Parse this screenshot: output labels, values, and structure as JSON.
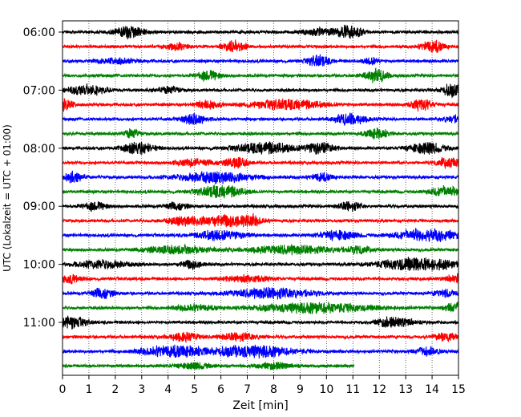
{
  "chart_data": {
    "type": "line",
    "title": "",
    "xlabel": "Zeit  [min]",
    "ylabel": "UTC (Lokalzeit = UTC + 01:00)",
    "xlim": [
      0,
      15
    ],
    "x_ticks": [
      0,
      1,
      2,
      3,
      4,
      5,
      6,
      7,
      8,
      9,
      10,
      11,
      12,
      13,
      14,
      15
    ],
    "x_tick_labels": [
      "0",
      "1",
      "2",
      "3",
      "4",
      "5",
      "6",
      "7",
      "8",
      "9",
      "10",
      "11",
      "12",
      "13",
      "14",
      "15"
    ],
    "y_tick_labels": [
      "06:00",
      "07:00",
      "08:00",
      "09:00",
      "10:00",
      "11:00"
    ],
    "y_tick_rows": [
      0,
      4,
      8,
      12,
      16,
      20
    ],
    "grid": "vertical dotted",
    "row_interval_min": 15,
    "colors": [
      "#000000",
      "#ff0000",
      "#0000ff",
      "#008000"
    ],
    "rows": [
      {
        "start": "06:00",
        "color": "#000000",
        "x_end": 15,
        "bursts": [
          [
            2.5,
            0.9,
            0.4
          ],
          [
            9.8,
            0.5,
            0.5
          ],
          [
            10.9,
            1.0,
            0.3
          ]
        ]
      },
      {
        "start": "06:15",
        "color": "#ff0000",
        "x_end": 15,
        "bursts": [
          [
            4.3,
            0.5,
            0.3
          ],
          [
            6.5,
            0.8,
            0.3
          ],
          [
            14.0,
            1.0,
            0.3
          ]
        ]
      },
      {
        "start": "06:30",
        "color": "#0000ff",
        "x_end": 15,
        "bursts": [
          [
            2.0,
            0.4,
            0.5
          ],
          [
            9.7,
            0.8,
            0.3
          ],
          [
            11.7,
            0.6,
            0.2
          ]
        ]
      },
      {
        "start": "06:45",
        "color": "#008000",
        "x_end": 15,
        "bursts": [
          [
            5.5,
            0.7,
            0.3
          ],
          [
            11.9,
            0.9,
            0.3
          ]
        ]
      },
      {
        "start": "07:00",
        "color": "#000000",
        "x_end": 15,
        "bursts": [
          [
            0.9,
            0.8,
            0.5
          ],
          [
            4.0,
            0.5,
            0.3
          ],
          [
            14.8,
            0.9,
            0.3
          ]
        ]
      },
      {
        "start": "07:15",
        "color": "#ff0000",
        "x_end": 15,
        "bursts": [
          [
            0.1,
            1.0,
            0.2
          ],
          [
            5.5,
            0.6,
            0.3
          ],
          [
            8.5,
            0.7,
            1.0
          ],
          [
            13.6,
            0.8,
            0.3
          ]
        ]
      },
      {
        "start": "07:30",
        "color": "#0000ff",
        "x_end": 15,
        "bursts": [
          [
            5.0,
            0.8,
            0.3
          ],
          [
            10.9,
            0.8,
            0.4
          ],
          [
            14.8,
            0.5,
            0.3
          ]
        ]
      },
      {
        "start": "07:45",
        "color": "#008000",
        "x_end": 15,
        "bursts": [
          [
            2.6,
            0.7,
            0.2
          ],
          [
            11.9,
            0.8,
            0.3
          ]
        ]
      },
      {
        "start": "08:00",
        "color": "#000000",
        "x_end": 15,
        "bursts": [
          [
            2.9,
            0.9,
            0.4
          ],
          [
            7.7,
            0.8,
            0.8
          ],
          [
            9.7,
            0.8,
            0.4
          ],
          [
            13.8,
            0.8,
            0.5
          ]
        ]
      },
      {
        "start": "08:15",
        "color": "#ff0000",
        "x_end": 15,
        "bursts": [
          [
            5.0,
            0.5,
            0.5
          ],
          [
            6.6,
            0.8,
            0.3
          ],
          [
            14.6,
            0.8,
            0.3
          ]
        ]
      },
      {
        "start": "08:30",
        "color": "#0000ff",
        "x_end": 15,
        "bursts": [
          [
            0.4,
            0.7,
            0.3
          ],
          [
            5.8,
            0.8,
            1.0
          ],
          [
            9.8,
            0.6,
            0.3
          ]
        ]
      },
      {
        "start": "08:45",
        "color": "#008000",
        "x_end": 15,
        "bursts": [
          [
            6.0,
            0.9,
            0.6
          ],
          [
            14.5,
            0.8,
            0.4
          ]
        ]
      },
      {
        "start": "09:00",
        "color": "#000000",
        "x_end": 15,
        "bursts": [
          [
            1.2,
            0.6,
            0.3
          ],
          [
            4.3,
            0.5,
            0.3
          ],
          [
            10.9,
            0.7,
            0.3
          ]
        ]
      },
      {
        "start": "09:15",
        "color": "#ff0000",
        "x_end": 15,
        "bursts": [
          [
            4.5,
            0.5,
            0.4
          ],
          [
            6.0,
            0.7,
            0.8
          ],
          [
            6.9,
            0.9,
            0.4
          ]
        ]
      },
      {
        "start": "09:30",
        "color": "#0000ff",
        "x_end": 15,
        "bursts": [
          [
            6.0,
            0.8,
            0.6
          ],
          [
            10.4,
            0.7,
            0.5
          ],
          [
            13.8,
            1.0,
            0.8
          ]
        ]
      },
      {
        "start": "09:45",
        "color": "#008000",
        "x_end": 15,
        "bursts": [
          [
            4.3,
            0.6,
            0.8
          ],
          [
            8.8,
            0.6,
            1.2
          ],
          [
            11.3,
            0.5,
            0.3
          ]
        ]
      },
      {
        "start": "10:00",
        "color": "#000000",
        "x_end": 15,
        "bursts": [
          [
            1.5,
            0.6,
            0.7
          ],
          [
            4.9,
            0.6,
            0.3
          ],
          [
            13.5,
            1.0,
            1.0
          ]
        ]
      },
      {
        "start": "10:15",
        "color": "#ff0000",
        "x_end": 15,
        "bursts": [
          [
            0.3,
            0.6,
            0.3
          ],
          [
            7.0,
            0.5,
            0.6
          ],
          [
            14.9,
            0.6,
            0.3
          ]
        ]
      },
      {
        "start": "10:30",
        "color": "#0000ff",
        "x_end": 15,
        "bursts": [
          [
            1.5,
            0.7,
            0.3
          ],
          [
            8.0,
            0.8,
            1.0
          ],
          [
            14.5,
            0.5,
            0.3
          ]
        ]
      },
      {
        "start": "10:45",
        "color": "#008000",
        "x_end": 15,
        "bursts": [
          [
            5.0,
            0.5,
            0.5
          ],
          [
            9.5,
            0.7,
            1.5
          ],
          [
            14.9,
            0.7,
            0.3
          ]
        ]
      },
      {
        "start": "11:00",
        "color": "#000000",
        "x_end": 15,
        "bursts": [
          [
            0.3,
            0.9,
            0.4
          ],
          [
            12.3,
            0.6,
            0.3
          ],
          [
            13.0,
            0.5,
            0.3
          ]
        ]
      },
      {
        "start": "11:15",
        "color": "#ff0000",
        "x_end": 15,
        "bursts": [
          [
            4.6,
            0.6,
            0.4
          ],
          [
            6.7,
            0.6,
            0.5
          ],
          [
            14.5,
            0.6,
            0.3
          ]
        ]
      },
      {
        "start": "11:30",
        "color": "#0000ff",
        "x_end": 15,
        "bursts": [
          [
            4.2,
            1.0,
            0.8
          ],
          [
            7.2,
            0.9,
            1.0
          ],
          [
            13.8,
            0.6,
            0.3
          ]
        ]
      },
      {
        "start": "11:45",
        "color": "#008000",
        "x_end": 11.05,
        "bursts": [
          [
            5.0,
            0.4,
            0.5
          ],
          [
            8.0,
            0.4,
            0.5
          ]
        ]
      }
    ]
  }
}
